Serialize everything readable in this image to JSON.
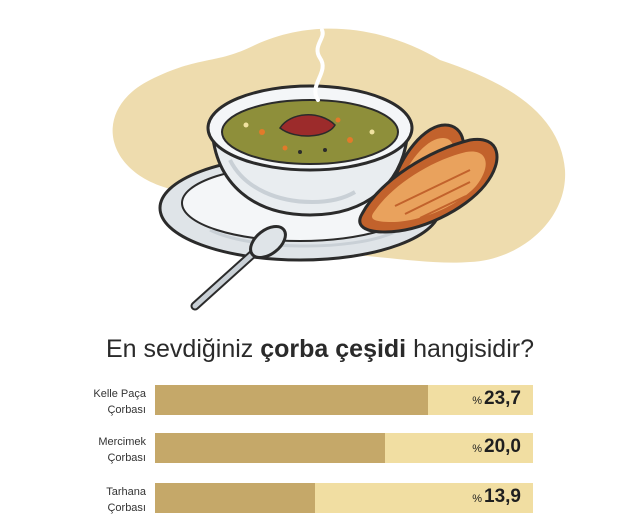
{
  "illustration": {
    "icons": [
      "soup-bowl-icon",
      "bread-icon",
      "spoon-icon",
      "steam-icon",
      "plate-icon"
    ],
    "colors": {
      "blob": "#eedcae",
      "soup": "#8e8f3a",
      "bread": "#e9a25d",
      "bread_dark": "#c2622c",
      "plate": "#e7ebee",
      "outline": "#2b2b2b"
    }
  },
  "chart_data": {
    "type": "bar",
    "title_parts": [
      {
        "text": "En sevdiğiniz ",
        "bold": false
      },
      {
        "text": "çorba çeşidi",
        "bold": true
      },
      {
        "text": " hangisidir?",
        "bold": false
      }
    ],
    "percent_symbol": "%",
    "categories": [
      [
        "Kelle Paça",
        "Çorbası"
      ],
      [
        "Mercimek",
        "Çorbası"
      ],
      [
        "Tarhana",
        "Çorbası"
      ]
    ],
    "values": [
      23.7,
      20.0,
      13.9
    ],
    "value_labels": [
      "23,7",
      "20,0",
      "13,9"
    ],
    "xlim": [
      0,
      32.8
    ],
    "colors": {
      "fill": "#c5a869",
      "track": "#f1dea2"
    }
  }
}
